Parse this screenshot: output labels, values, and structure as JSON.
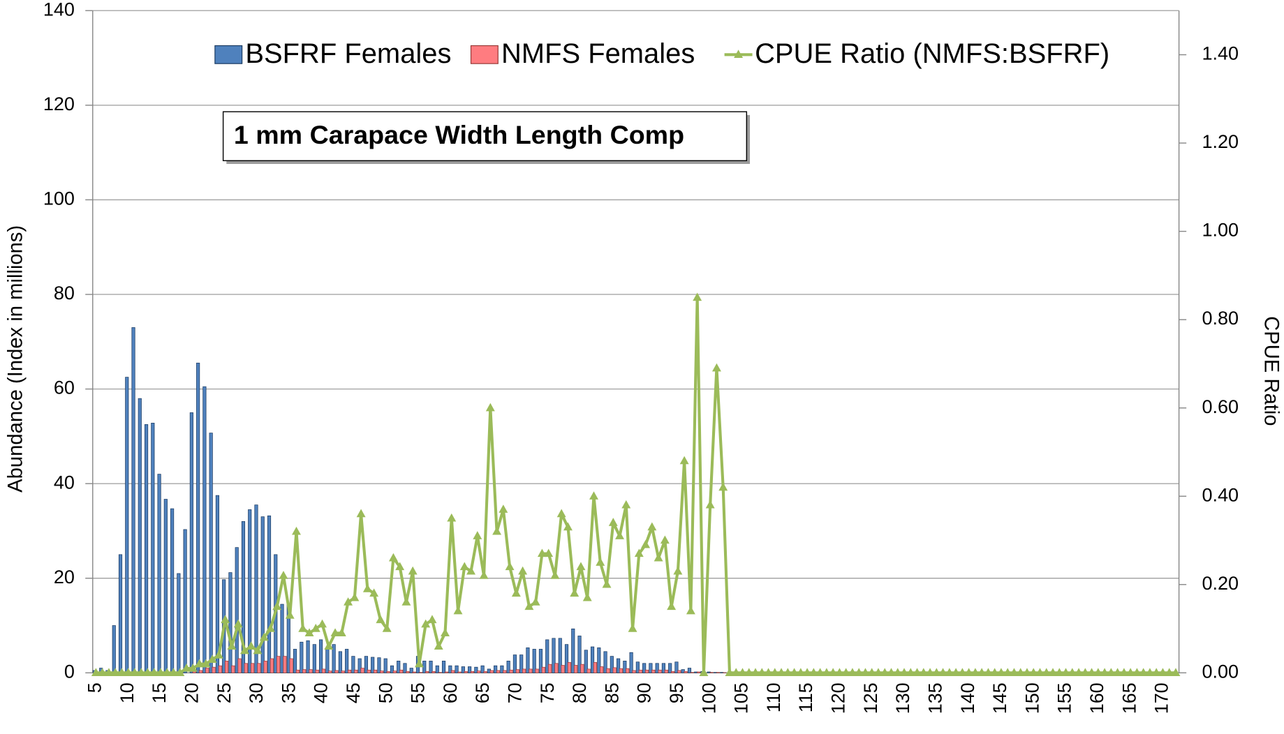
{
  "chart_data": {
    "type": "bar_line",
    "annotation": "1 mm Carapace Width Length Comp",
    "ylabel": "Abundance (Index in millions)",
    "y2label": "CPUE Ratio",
    "legend": "top",
    "grid": true,
    "ylim": [
      0,
      140
    ],
    "yticks": [
      0,
      20,
      40,
      60,
      80,
      100,
      120,
      140
    ],
    "y2lim": [
      0,
      1.5
    ],
    "y2ticks": [
      {
        "value": 0,
        "label": "0.00"
      },
      {
        "value": 0.2,
        "label": "0.20"
      },
      {
        "value": 0.4,
        "label": "0.40"
      },
      {
        "value": 0.6,
        "label": "0.60"
      },
      {
        "value": 0.8,
        "label": "0.80"
      },
      {
        "value": 1.0,
        "label": "1.00"
      },
      {
        "value": 1.2,
        "label": "1.20"
      },
      {
        "value": 1.4,
        "label": "1.40"
      }
    ],
    "categories": [
      "5",
      null,
      null,
      null,
      null,
      "10",
      null,
      null,
      null,
      null,
      "15",
      null,
      null,
      null,
      null,
      "20",
      null,
      null,
      null,
      null,
      "25",
      null,
      null,
      null,
      null,
      "30",
      null,
      null,
      null,
      null,
      "35",
      null,
      null,
      null,
      null,
      "40",
      null,
      null,
      null,
      null,
      "45",
      null,
      null,
      null,
      null,
      "50",
      null,
      null,
      null,
      null,
      "55",
      null,
      null,
      null,
      null,
      "60",
      null,
      null,
      null,
      null,
      "65",
      null,
      null,
      null,
      null,
      "70",
      null,
      null,
      null,
      null,
      "75",
      null,
      null,
      null,
      null,
      "80",
      null,
      null,
      null,
      null,
      "85",
      null,
      null,
      null,
      null,
      "90",
      null,
      null,
      null,
      null,
      "95",
      null,
      null,
      null,
      null,
      "100",
      null,
      null,
      null,
      null,
      "105",
      null,
      null,
      null,
      null,
      "110",
      null,
      null,
      null,
      null,
      "115",
      null,
      null,
      null,
      null,
      "120",
      null,
      null,
      null,
      null,
      "125",
      null,
      null,
      null,
      null,
      "130",
      null,
      null,
      null,
      null,
      "135",
      null,
      null,
      null,
      null,
      "140",
      null,
      null,
      null,
      null,
      "145",
      null,
      null,
      null,
      null,
      "150",
      null,
      null,
      null,
      null,
      "155",
      null,
      null,
      null,
      null,
      "160",
      null,
      null,
      null,
      null,
      "165",
      null,
      null,
      null,
      null,
      "170",
      null,
      null
    ],
    "series": [
      {
        "name": "BSFRF Females",
        "type": "bar",
        "color": "#4f81bd",
        "values": [
          0.5,
          1,
          0.5,
          10,
          25,
          62.5,
          73,
          58,
          52.5,
          52.8,
          42,
          36.7,
          34.7,
          21,
          30.3,
          55,
          65.5,
          60.5,
          50.7,
          37.5,
          19.7,
          21.2,
          26.5,
          32,
          34.5,
          35.5,
          33,
          33.2,
          25,
          14.5,
          14.5,
          5,
          6.5,
          6.8,
          6,
          7,
          5,
          6,
          4.5,
          5,
          3.5,
          3,
          3.5,
          3.3,
          3.2,
          3,
          1.5,
          2.5,
          2,
          1,
          3.5,
          2.5,
          2.5,
          1.5,
          2.5,
          1.5,
          1.5,
          1.3,
          1.3,
          1.2,
          1.5,
          0.8,
          1.5,
          1.5,
          2.5,
          3.8,
          3.8,
          5.3,
          5,
          5,
          7,
          7.3,
          7.3,
          6,
          9.3,
          7.8,
          4.8,
          5.5,
          5.3,
          4.5,
          3.5,
          3,
          2.5,
          4.3,
          2.3,
          2,
          2,
          2,
          2,
          2,
          2.3,
          0.7,
          1,
          0.2,
          0.3,
          0.2,
          0.1,
          0.1,
          0,
          0,
          0,
          0,
          0,
          0,
          0,
          0,
          0,
          0,
          0,
          0,
          0,
          0,
          0,
          0,
          0,
          0,
          0,
          0,
          0,
          0,
          0,
          0,
          0,
          0,
          0,
          0,
          0,
          0,
          0,
          0,
          0,
          0,
          0,
          0,
          0,
          0,
          0,
          0,
          0,
          0,
          0,
          0,
          0,
          0,
          0,
          0,
          0,
          0,
          0,
          0,
          0,
          0,
          0,
          0,
          0,
          0,
          0,
          0,
          0,
          0,
          0,
          0,
          0,
          0,
          0,
          0,
          0,
          0
        ]
      },
      {
        "name": "NMFS Females",
        "type": "bar",
        "color": "#ff7c80",
        "values": [
          0,
          0,
          0,
          0,
          0,
          0,
          0,
          0,
          0,
          0,
          0,
          0,
          0,
          0,
          0,
          0.3,
          0.5,
          1,
          1.2,
          1.5,
          2.5,
          1.5,
          3,
          2,
          2,
          2,
          2.5,
          3,
          3.5,
          3.5,
          3,
          0.6,
          0.7,
          0.7,
          0.6,
          0.8,
          0.4,
          0.5,
          0.4,
          0.6,
          0.6,
          1,
          0.6,
          0.6,
          0.4,
          0.3,
          0.4,
          0.6,
          0.3,
          0.2,
          0.1,
          0.3,
          0.3,
          0.1,
          0.2,
          0.5,
          0.2,
          0.3,
          0.3,
          0.4,
          0.3,
          0.5,
          0.5,
          0.5,
          0.6,
          0.7,
          0.8,
          0.8,
          0.8,
          1.2,
          1.8,
          2,
          1.6,
          2.2,
          1.6,
          1.8,
          0.8,
          2.2,
          1.3,
          0.9,
          1.1,
          0.9,
          0.9,
          0.5,
          0.6,
          0.6,
          0.6,
          0.6,
          0.6,
          0.3,
          0.5,
          0.3,
          0.1,
          0.2,
          0,
          0.1,
          0.1,
          0.04,
          0,
          0,
          0,
          0,
          0,
          0,
          0,
          0,
          0,
          0,
          0,
          0,
          0,
          0,
          0,
          0,
          0,
          0,
          0,
          0,
          0,
          0,
          0,
          0,
          0,
          0,
          0,
          0,
          0,
          0,
          0,
          0,
          0,
          0,
          0,
          0,
          0,
          0,
          0,
          0,
          0,
          0,
          0,
          0,
          0,
          0,
          0,
          0,
          0,
          0,
          0,
          0,
          0,
          0,
          0,
          0,
          0,
          0,
          0,
          0,
          0,
          0,
          0,
          0,
          0,
          0,
          0,
          0,
          0,
          0
        ]
      },
      {
        "name": "CPUE Ratio (NMFS:BSFRF)",
        "type": "line",
        "axis": "y2",
        "color": "#9bbb59",
        "values": [
          0,
          0,
          0,
          0,
          0,
          0,
          0,
          0,
          0,
          0,
          0,
          0,
          0,
          0,
          0.01,
          0.01,
          0.02,
          0.02,
          0.03,
          0.04,
          0.12,
          0.06,
          0.11,
          0.05,
          0.06,
          0.05,
          0.08,
          0.1,
          0.15,
          0.22,
          0.13,
          0.32,
          0.1,
          0.09,
          0.1,
          0.11,
          0.06,
          0.09,
          0.09,
          0.16,
          0.17,
          0.36,
          0.19,
          0.18,
          0.12,
          0.1,
          0.26,
          0.24,
          0.16,
          0.23,
          0.02,
          0.11,
          0.12,
          0.06,
          0.09,
          0.35,
          0.14,
          0.24,
          0.23,
          0.31,
          0.22,
          0.6,
          0.32,
          0.37,
          0.24,
          0.18,
          0.23,
          0.15,
          0.16,
          0.27,
          0.27,
          0.22,
          0.36,
          0.33,
          0.18,
          0.24,
          0.17,
          0.4,
          0.25,
          0.2,
          0.34,
          0.31,
          0.38,
          0.1,
          0.27,
          0.29,
          0.33,
          0.26,
          0.3,
          0.15,
          0.23,
          0.48,
          0.14,
          0.85,
          0,
          0.38,
          0.69,
          0.42,
          0,
          0,
          0,
          0,
          0,
          0,
          0,
          0,
          0,
          0,
          0,
          0,
          0,
          0,
          0,
          0,
          0,
          0,
          0,
          0,
          0,
          0,
          0,
          0,
          0,
          0,
          0,
          0,
          0,
          0,
          0,
          0,
          0,
          0,
          0,
          0,
          0,
          0,
          0,
          0,
          0,
          0,
          0,
          0,
          0,
          0,
          0,
          0,
          0,
          0,
          0,
          0,
          0,
          0,
          0,
          0,
          0,
          0,
          0,
          0,
          0,
          0,
          0,
          0,
          0,
          0,
          0,
          0,
          0,
          0
        ]
      }
    ]
  }
}
